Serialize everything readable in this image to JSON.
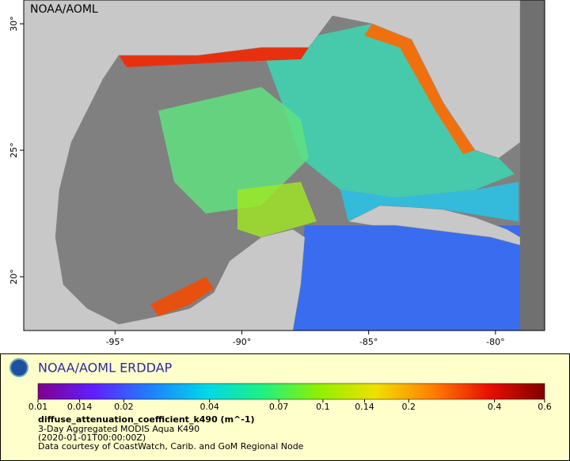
{
  "map": {
    "watermark": "NOAA/AOML",
    "xlim": [
      -98.6,
      -78.06
    ],
    "ylim": [
      17.875,
      30.94
    ],
    "xticks": [
      {
        "value": -95,
        "label": "-95°"
      },
      {
        "value": -90,
        "label": "-90°"
      },
      {
        "value": -85,
        "label": "-85°"
      },
      {
        "value": -80,
        "label": "-80°"
      }
    ],
    "yticks": [
      {
        "value": 20,
        "label": "20°"
      },
      {
        "value": 25,
        "label": "25°"
      },
      {
        "value": 30,
        "label": "30°"
      }
    ]
  },
  "legend": {
    "title": "NOAA/AOML ERDDAP",
    "colorbar": {
      "scale": "log",
      "lim": [
        0.01,
        0.6
      ],
      "ticks": [
        0.01,
        0.014,
        0.02,
        0.04,
        0.07,
        0.1,
        0.14,
        0.2,
        0.4,
        0.6
      ],
      "colors": [
        "#80008c",
        "#6020ff",
        "#2080ff",
        "#00d8e8",
        "#20f080",
        "#90f000",
        "#f0e000",
        "#ff8000",
        "#e81000",
        "#800000"
      ]
    },
    "variable": "diffuse_attenuation_coefficient_k490 (m^-1)",
    "lines": [
      "3-Day Aggregated MODIS Aqua K490",
      "(2020-01-01T00:00:00Z)",
      "Data courtesy of CoastWatch, Carib. and GoM Regional Node"
    ]
  }
}
